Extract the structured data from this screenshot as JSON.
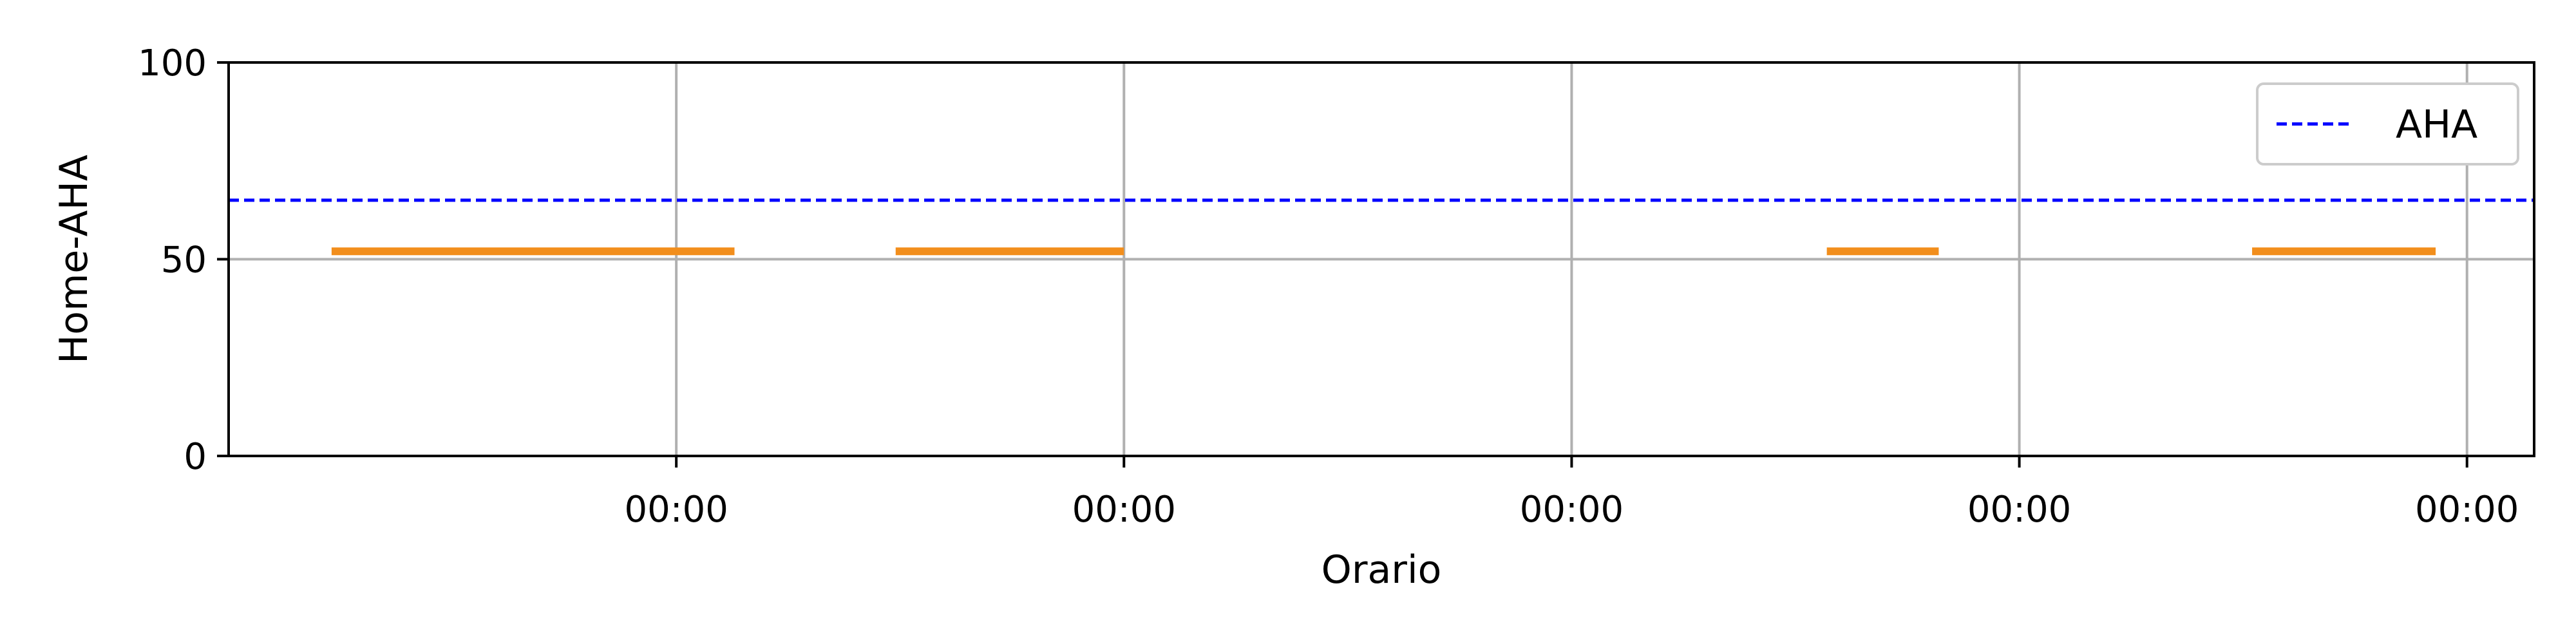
{
  "chart_data": {
    "type": "line",
    "title": "",
    "xlabel": "Orario",
    "ylabel": "Home-AHA",
    "ylim": [
      0,
      100
    ],
    "yticks": [
      0,
      50,
      100
    ],
    "xlim": [
      -1.0,
      4.15
    ],
    "xticks": [
      0,
      1,
      2,
      3,
      4
    ],
    "xtick_labels": [
      "00:00",
      "00:00",
      "00:00",
      "00:00",
      "00:00"
    ],
    "grid": true,
    "legend_position": "top-right",
    "threshold": {
      "name": "AHA",
      "value": 65,
      "color": "#0000ff",
      "style": "dashed"
    },
    "series": [
      {
        "color": "#f28e1c",
        "segments": [
          {
            "x": [
              -0.77,
              0.13
            ],
            "y": 52
          },
          {
            "x": [
              0.49,
              1.0
            ],
            "y": 52
          },
          {
            "x": [
              2.57,
              2.82
            ],
            "y": 52
          },
          {
            "x": [
              3.52,
              3.93
            ],
            "y": 52
          }
        ]
      }
    ]
  }
}
